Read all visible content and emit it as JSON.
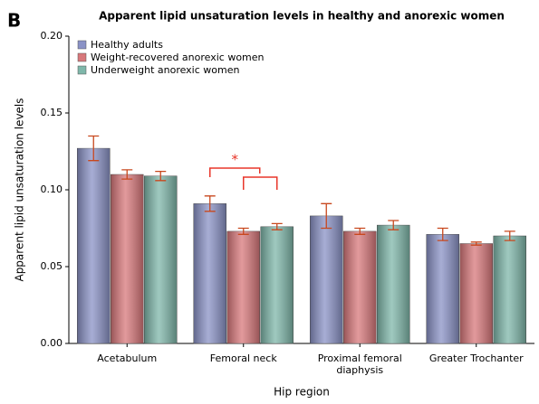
{
  "chart_data": {
    "type": "bar",
    "panel_label": "B",
    "title": "Apparent lipid unsaturation levels in healthy and anorexic women",
    "x_label": "Hip region",
    "y_label": "Apparent lipid unsaturation levels",
    "categories": [
      "Acetabulum",
      "Femoral neck",
      "Proximal femoral diaphysis",
      "Greater Trochanter"
    ],
    "series": [
      {
        "name": "Healthy adults",
        "color": "#8a92c6",
        "values": [
          0.127,
          0.091,
          0.083,
          0.071
        ],
        "errors": [
          0.008,
          0.005,
          0.008,
          0.004
        ]
      },
      {
        "name": "Weight-recovered anorexic women",
        "color": "#d8787b",
        "values": [
          0.11,
          0.073,
          0.073,
          0.065
        ],
        "errors": [
          0.003,
          0.002,
          0.002,
          0.001
        ]
      },
      {
        "name": "Underweight anorexic women",
        "color": "#7fb7aa",
        "values": [
          0.109,
          0.076,
          0.077,
          0.07
        ],
        "errors": [
          0.003,
          0.002,
          0.003,
          0.003
        ]
      }
    ],
    "error_color": "#c8481e",
    "annotation": "*",
    "ylim": [
      0,
      0.2
    ],
    "yticks": [
      {
        "value": 0,
        "label": "0.00"
      },
      {
        "value": 0.05,
        "label": "0.05"
      },
      {
        "value": 0.1,
        "label": "0.10"
      },
      {
        "value": 0.15,
        "label": "0.15"
      },
      {
        "value": 0.2,
        "label": "0.20"
      }
    ],
    "legend": "upper left"
  }
}
